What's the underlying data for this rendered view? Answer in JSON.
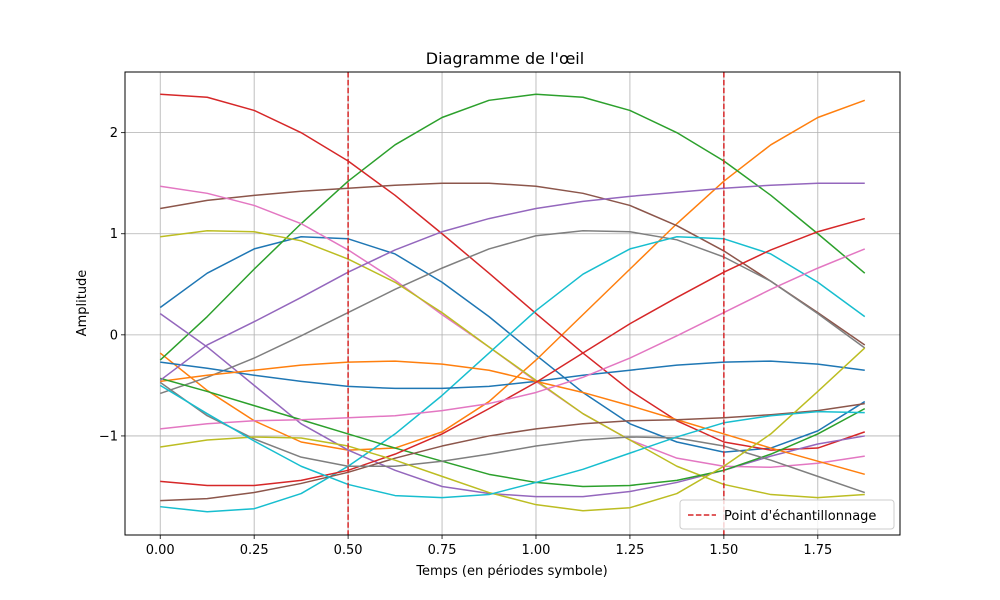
{
  "chart_data": {
    "type": "line",
    "title": "Diagramme de l'œil",
    "xlabel": "Temps (en périodes symbole)",
    "ylabel": "Amplitude",
    "xlim": [
      -0.09375,
      1.96875
    ],
    "ylim": [
      -1.98,
      2.6
    ],
    "xticks": [
      0.0,
      0.25,
      0.5,
      0.75,
      1.0,
      1.25,
      1.5,
      1.75
    ],
    "xtick_labels": [
      "0.00",
      "0.25",
      "0.50",
      "0.75",
      "1.00",
      "1.25",
      "1.50",
      "1.75"
    ],
    "yticks": [
      -1,
      0,
      1,
      2
    ],
    "ytick_labels": [
      "−1",
      "0",
      "1",
      "2"
    ],
    "grid": true,
    "x": [
      0.0,
      0.125,
      0.25,
      0.375,
      0.5,
      0.625,
      0.75,
      0.875,
      1.0,
      1.125,
      1.25,
      1.375,
      1.5,
      1.625,
      1.75,
      1.875
    ],
    "series": [
      {
        "color": "#1f77b4",
        "values": [
          0.27,
          0.61,
          0.85,
          0.97,
          0.95,
          0.8,
          0.52,
          0.18,
          -0.2,
          -0.57,
          -0.88,
          -1.06,
          -1.16,
          -1.12,
          -0.95,
          -0.66
        ]
      },
      {
        "color": "#ff7f0e",
        "values": [
          -0.18,
          -0.55,
          -0.85,
          -1.06,
          -1.14,
          -1.12,
          -0.96,
          -0.66,
          -0.25,
          0.2,
          0.65,
          1.1,
          1.52,
          1.88,
          2.15,
          2.32
        ]
      },
      {
        "color": "#2ca02c",
        "values": [
          -0.25,
          0.18,
          0.65,
          1.1,
          1.52,
          1.88,
          2.15,
          2.32,
          2.38,
          2.35,
          2.22,
          2.0,
          1.72,
          1.38,
          1.0,
          0.61
        ]
      },
      {
        "color": "#d62728",
        "values": [
          2.38,
          2.35,
          2.22,
          2.0,
          1.72,
          1.38,
          1.0,
          0.61,
          0.21,
          -0.18,
          -0.55,
          -0.85,
          -1.06,
          -1.14,
          -1.12,
          -0.96
        ]
      },
      {
        "color": "#9467bd",
        "values": [
          0.21,
          -0.12,
          -0.5,
          -0.88,
          -1.14,
          -1.34,
          -1.5,
          -1.57,
          -1.6,
          -1.6,
          -1.55,
          -1.46,
          -1.34,
          -1.2,
          -1.08,
          -1.0
        ]
      },
      {
        "color": "#8c564b",
        "values": [
          1.25,
          1.33,
          1.38,
          1.42,
          1.45,
          1.48,
          1.5,
          1.5,
          1.47,
          1.4,
          1.28,
          1.08,
          0.83,
          0.53,
          0.22,
          -0.1
        ]
      },
      {
        "color": "#e377c2",
        "values": [
          1.47,
          1.4,
          1.28,
          1.1,
          0.84,
          0.54,
          0.2,
          -0.12,
          -0.46,
          -0.78,
          -1.04,
          -1.22,
          -1.3,
          -1.31,
          -1.27,
          -1.2
        ]
      },
      {
        "color": "#7f7f7f",
        "values": [
          -0.58,
          -0.42,
          -0.23,
          -0.01,
          0.22,
          0.45,
          0.66,
          0.85,
          0.98,
          1.03,
          1.02,
          0.94,
          0.77,
          0.53,
          0.21,
          -0.13
        ]
      },
      {
        "color": "#bcbd22",
        "values": [
          0.97,
          1.03,
          1.02,
          0.93,
          0.75,
          0.52,
          0.22,
          -0.12,
          -0.45,
          -0.78,
          -1.04,
          -1.3,
          -1.48,
          -1.58,
          -1.61,
          -1.58
        ]
      },
      {
        "color": "#17becf",
        "values": [
          -1.7,
          -1.75,
          -1.72,
          -1.57,
          -1.3,
          -0.98,
          -0.6,
          -0.18,
          0.24,
          0.6,
          0.85,
          0.97,
          0.95,
          0.8,
          0.52,
          0.18
        ]
      },
      {
        "color": "#1f77b4",
        "values": [
          -0.27,
          -0.33,
          -0.4,
          -0.46,
          -0.51,
          -0.53,
          -0.53,
          -0.51,
          -0.46,
          -0.4,
          -0.35,
          -0.3,
          -0.27,
          -0.26,
          -0.29,
          -0.35
        ]
      },
      {
        "color": "#ff7f0e",
        "values": [
          -0.46,
          -0.4,
          -0.35,
          -0.3,
          -0.27,
          -0.26,
          -0.29,
          -0.35,
          -0.46,
          -0.57,
          -0.7,
          -0.84,
          -0.98,
          -1.12,
          -1.25,
          -1.38
        ]
      },
      {
        "color": "#2ca02c",
        "values": [
          -0.43,
          -0.56,
          -0.7,
          -0.84,
          -0.98,
          -1.12,
          -1.25,
          -1.38,
          -1.46,
          -1.5,
          -1.49,
          -1.44,
          -1.34,
          -1.18,
          -0.98,
          -0.73
        ]
      },
      {
        "color": "#d62728",
        "values": [
          -1.45,
          -1.49,
          -1.49,
          -1.44,
          -1.34,
          -1.18,
          -0.98,
          -0.73,
          -0.47,
          -0.18,
          0.11,
          0.37,
          0.62,
          0.84,
          1.02,
          1.15
        ]
      },
      {
        "color": "#9467bd",
        "values": [
          -0.45,
          -0.1,
          0.13,
          0.37,
          0.62,
          0.84,
          1.02,
          1.15,
          1.25,
          1.32,
          1.37,
          1.41,
          1.45,
          1.48,
          1.5,
          1.5
        ]
      },
      {
        "color": "#8c564b",
        "values": [
          -1.64,
          -1.62,
          -1.56,
          -1.47,
          -1.36,
          -1.22,
          -1.1,
          -1.0,
          -0.93,
          -0.88,
          -0.85,
          -0.84,
          -0.82,
          -0.79,
          -0.75,
          -0.68
        ]
      },
      {
        "color": "#e377c2",
        "values": [
          -0.93,
          -0.88,
          -0.85,
          -0.84,
          -0.82,
          -0.8,
          -0.75,
          -0.68,
          -0.57,
          -0.42,
          -0.23,
          -0.01,
          0.22,
          0.45,
          0.66,
          0.85
        ]
      },
      {
        "color": "#7f7f7f",
        "values": [
          -0.47,
          -0.8,
          -1.03,
          -1.21,
          -1.3,
          -1.3,
          -1.25,
          -1.18,
          -1.1,
          -1.04,
          -1.01,
          -1.02,
          -1.1,
          -1.24,
          -1.4,
          -1.56
        ]
      },
      {
        "color": "#bcbd22",
        "values": [
          -1.11,
          -1.04,
          -1.01,
          -1.02,
          -1.1,
          -1.24,
          -1.4,
          -1.56,
          -1.68,
          -1.74,
          -1.71,
          -1.57,
          -1.3,
          -0.98,
          -0.56,
          -0.13
        ]
      },
      {
        "color": "#17becf",
        "values": [
          -0.5,
          -0.78,
          -1.05,
          -1.3,
          -1.48,
          -1.59,
          -1.61,
          -1.58,
          -1.46,
          -1.33,
          -1.17,
          -1.01,
          -0.87,
          -0.8,
          -0.76,
          -0.77
        ]
      }
    ],
    "vlines": [
      {
        "x": 0.5,
        "color": "#d62728",
        "style": "dashed"
      },
      {
        "x": 1.5,
        "color": "#d62728",
        "style": "dashed"
      }
    ],
    "legend": {
      "placement": "lower-right",
      "entries": [
        {
          "label": "Point d'échantillonnage",
          "color": "#d62728",
          "style": "dashed"
        }
      ]
    }
  }
}
